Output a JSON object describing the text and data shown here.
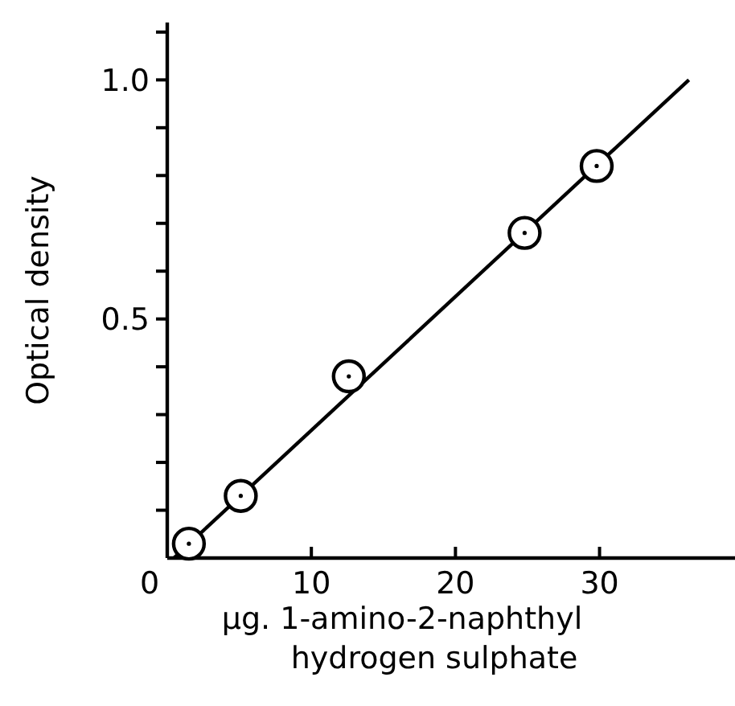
{
  "chart_data": {
    "type": "scatter",
    "xlabel": "μg. 1-amino-2-naphthyl hydrogen sulphate",
    "ylabel": "Optical density",
    "xlim": [
      0,
      39.4
    ],
    "ylim": [
      0,
      1.12
    ],
    "xticks": [
      0,
      10,
      20,
      30
    ],
    "yticks": [
      {
        "value": 0.1,
        "label": null
      },
      {
        "value": 0.2,
        "label": null
      },
      {
        "value": 0.3,
        "label": null
      },
      {
        "value": 0.4,
        "label": null
      },
      {
        "value": 0.5,
        "label": "0.5"
      },
      {
        "value": 0.6,
        "label": null
      },
      {
        "value": 0.7,
        "label": null
      },
      {
        "value": 0.8,
        "label": null
      },
      {
        "value": 0.9,
        "label": null
      },
      {
        "value": 1.0,
        "label": "1.0"
      },
      {
        "value": 1.1,
        "label": null
      }
    ],
    "series": [
      {
        "color": "#000000",
        "marker": "circle",
        "x": [
          1.5,
          5.1,
          12.6,
          24.8,
          29.8
        ],
        "values": [
          0.03,
          0.13,
          0.38,
          0.68,
          0.82
        ]
      },
      {
        "type": "line",
        "color": "#000000",
        "marker": "none",
        "line_style": "solid",
        "x": [
          0.45,
          36.2
        ],
        "values": [
          0,
          1.0
        ]
      }
    ]
  }
}
